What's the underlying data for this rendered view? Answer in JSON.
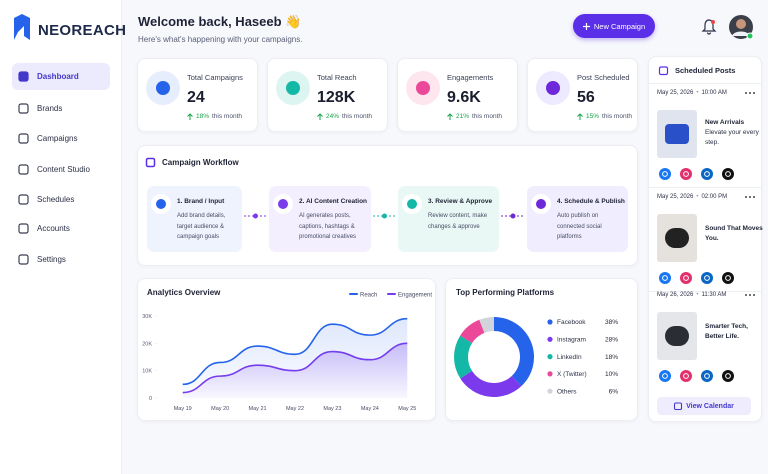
{
  "brand": "NEOREACH",
  "nav": [
    "Dashboard",
    "Brands",
    "Campaigns",
    "Content Studio",
    "Schedules",
    "Accounts",
    "Settings"
  ],
  "header": {
    "title": "Welcome back, Haseeb 👋",
    "subtitle": "Here's what's happening with your campaigns.",
    "button": "New Campaign"
  },
  "stats": [
    {
      "label": "Total Campaigns",
      "value": "24",
      "change": "18%",
      "period": "this month"
    },
    {
      "label": "Total Reach",
      "value": "128K",
      "change": "24%",
      "period": "this month"
    },
    {
      "label": "Engagements",
      "value": "9.6K",
      "change": "21%",
      "period": "this month"
    },
    {
      "label": "Post Scheduled",
      "value": "56",
      "change": "15%",
      "period": "this month"
    }
  ],
  "workflow": {
    "title": "Campaign Workflow",
    "steps": [
      {
        "title": "1. Brand / Input",
        "desc": "Add brand details, target audience & campaign goals"
      },
      {
        "title": "2. AI Content Creation",
        "desc": "AI generates posts, captions, hashtags & promotional creatives"
      },
      {
        "title": "3. Review & Approve",
        "desc": "Review content, make changes & approve"
      },
      {
        "title": "4. Schedule & Publish",
        "desc": "Auto publish on connected social platforms"
      }
    ]
  },
  "chart_data": [
    {
      "type": "line",
      "title": "Analytics Overview",
      "categories": [
        "May 19",
        "May 20",
        "May 21",
        "May 22",
        "May 23",
        "May 24",
        "May 25"
      ],
      "series": [
        {
          "name": "Reach",
          "color": "#2563eb",
          "values": [
            5000,
            13000,
            19000,
            16000,
            27000,
            23000,
            29000
          ]
        },
        {
          "name": "Engagement",
          "color": "#7c3aed",
          "values": [
            2000,
            8000,
            12000,
            10000,
            17000,
            14000,
            20000
          ]
        }
      ],
      "ylim": [
        0,
        30000
      ],
      "yticks": [
        0,
        {
          "value": 10000,
          "label": "10K"
        },
        {
          "value": 20000,
          "label": "20K"
        },
        {
          "value": 30000,
          "label": "30K"
        }
      ]
    },
    {
      "type": "pie",
      "title": "Top Performing Platforms",
      "categories": [
        "Facebook",
        "Instagram",
        "LinkedIn",
        "X (Twitter)",
        "Others"
      ],
      "values": [
        38,
        28,
        18,
        10,
        6
      ],
      "value_labels": [
        "38%",
        "28%",
        "18%",
        "10%",
        "6%"
      ],
      "colors": [
        "#2563eb",
        "#7c3aed",
        "#14b8a6",
        "#ec4899",
        "#d1d5db"
      ]
    }
  ],
  "scheduled": {
    "title": "Scheduled Posts",
    "posts": [
      {
        "date": "May 25, 2026",
        "time": "10:00 AM",
        "title": "New Arrivals",
        "caption": "Elevate your every step."
      },
      {
        "date": "May 25, 2026",
        "time": "02:00 PM",
        "title": "Sound That Moves You."
      },
      {
        "date": "May 26, 2026",
        "time": "11:30 AM",
        "title": "Smarter Tech, Better Life."
      }
    ],
    "button": "View Calendar"
  }
}
